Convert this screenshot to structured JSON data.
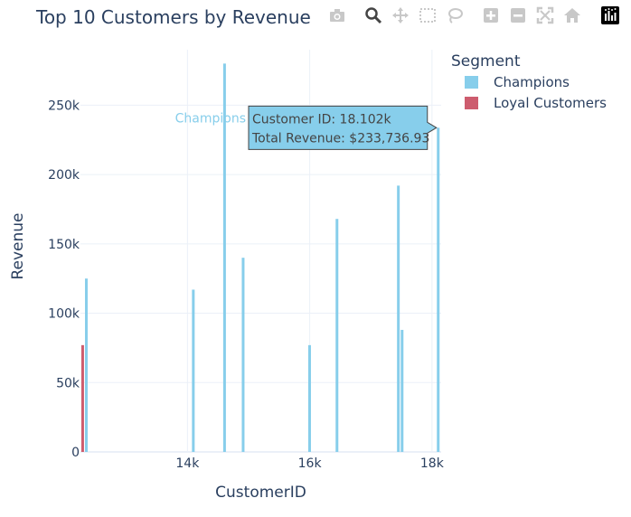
{
  "chart_data": {
    "type": "bar",
    "title": "Top 10 Customers by Revenue",
    "xlabel": "CustomerID",
    "ylabel": "Revenue",
    "xlim": [
      12250,
      18150
    ],
    "ylim": [
      0,
      290000
    ],
    "x_ticks": [
      14000,
      16000,
      18000
    ],
    "x_tick_labels": [
      "14k",
      "16k",
      "18k"
    ],
    "y_ticks": [
      0,
      50000,
      100000,
      150000,
      200000,
      250000
    ],
    "y_tick_labels": [
      "0",
      "50k",
      "100k",
      "150k",
      "200k",
      "250k"
    ],
    "grid": true,
    "legend_title": "Segment",
    "legend_position": "top-right",
    "series": [
      {
        "name": "Champions",
        "color": "#87CEEB",
        "x": [
          12346,
          14096,
          14607,
          14911,
          15998,
          16446,
          17450,
          17511,
          18102
        ],
        "values": [
          125000,
          117000,
          280000,
          140000,
          77000,
          168000,
          192000,
          88000,
          233736.93
        ]
      },
      {
        "name": "Loyal Customers",
        "color": "#CD5C6E",
        "x": [
          12286
        ],
        "values": [
          77000
        ]
      }
    ],
    "hover": {
      "series_label": "Champions",
      "line1": "Customer ID: 18.102k",
      "line2": "Total Revenue: $233,736.93"
    }
  },
  "toolbar": {
    "icons": [
      "camera-icon",
      "zoom-icon",
      "pan-icon",
      "box-select-icon",
      "lasso-select-icon",
      "zoom-in-icon",
      "zoom-out-icon",
      "autoscale-icon",
      "reset-axes-icon",
      "plotly-logo-icon"
    ]
  }
}
